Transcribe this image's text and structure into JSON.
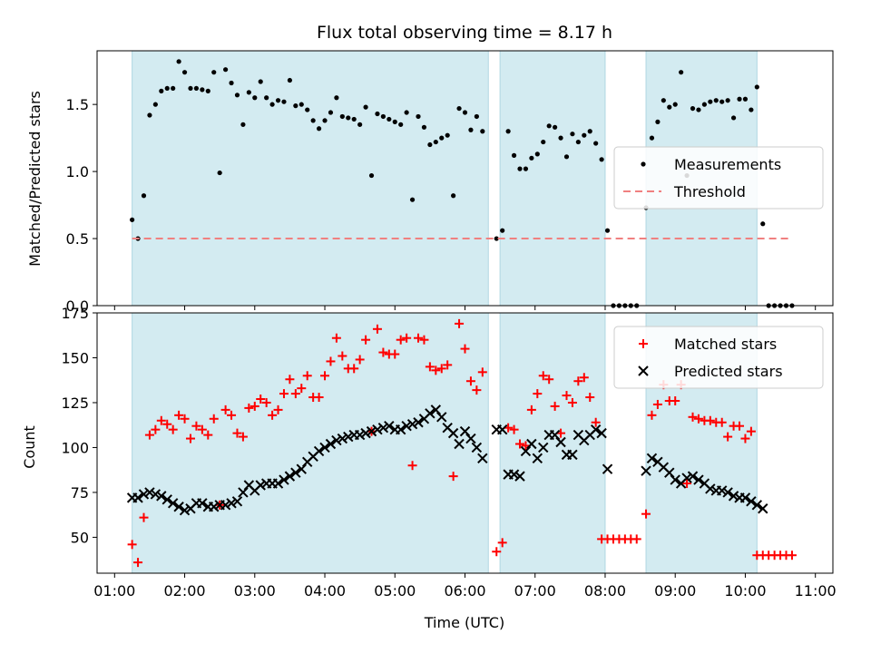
{
  "chart_data": [
    {
      "type": "scatter",
      "title": "Flux total observing time = 8.17 h",
      "ylabel": "Matched/Predicted stars",
      "xlabel": "",
      "xlim": [
        "01:00",
        "11:00"
      ],
      "ylim": [
        0,
        1.9
      ],
      "yticks": [
        "0.0",
        "0.5",
        "1.0",
        "1.5"
      ],
      "legend_position": "center-right",
      "observing_windows": [
        [
          "01:15",
          "06:20"
        ],
        [
          "06:30",
          "08:00"
        ],
        [
          "08:35",
          "10:10"
        ]
      ],
      "window_color": "#d3ebf1",
      "series": [
        {
          "name": "Measurements",
          "color": "#000000",
          "marker": "dot",
          "x": [
            "01:15",
            "01:20",
            "01:25",
            "01:30",
            "01:35",
            "01:40",
            "01:45",
            "01:50",
            "01:55",
            "02:00",
            "02:05",
            "02:10",
            "02:15",
            "02:20",
            "02:25",
            "02:30",
            "02:35",
            "02:40",
            "02:45",
            "02:50",
            "02:55",
            "03:00",
            "03:05",
            "03:10",
            "03:15",
            "03:20",
            "03:25",
            "03:30",
            "03:35",
            "03:40",
            "03:45",
            "03:50",
            "03:55",
            "04:00",
            "04:05",
            "04:10",
            "04:15",
            "04:20",
            "04:25",
            "04:30",
            "04:35",
            "04:40",
            "04:45",
            "04:50",
            "04:55",
            "05:00",
            "05:05",
            "05:10",
            "05:15",
            "05:20",
            "05:25",
            "05:30",
            "05:35",
            "05:40",
            "05:45",
            "05:50",
            "05:55",
            "06:00",
            "06:05",
            "06:10",
            "06:15",
            "06:27",
            "06:32",
            "06:37",
            "06:42",
            "06:47",
            "06:52",
            "06:57",
            "07:02",
            "07:07",
            "07:12",
            "07:17",
            "07:22",
            "07:27",
            "07:32",
            "07:37",
            "07:42",
            "07:47",
            "07:52",
            "07:57",
            "08:02",
            "08:07",
            "08:12",
            "08:17",
            "08:22",
            "08:27",
            "08:35",
            "08:40",
            "08:45",
            "08:50",
            "08:55",
            "09:00",
            "09:05",
            "09:10",
            "09:15",
            "09:20",
            "09:25",
            "09:30",
            "09:35",
            "09:40",
            "09:45",
            "09:50",
            "09:55",
            "10:00",
            "10:05",
            "10:10",
            "10:15",
            "10:20",
            "10:25",
            "10:30",
            "10:35",
            "10:40"
          ],
          "y": [
            0.64,
            0.5,
            0.82,
            1.42,
            1.5,
            1.6,
            1.62,
            1.62,
            1.82,
            1.74,
            1.62,
            1.62,
            1.61,
            1.6,
            1.74,
            0.99,
            1.76,
            1.66,
            1.57,
            1.35,
            1.59,
            1.55,
            1.67,
            1.55,
            1.5,
            1.53,
            1.52,
            1.68,
            1.49,
            1.5,
            1.46,
            1.38,
            1.32,
            1.38,
            1.44,
            1.55,
            1.41,
            1.4,
            1.39,
            1.35,
            1.48,
            0.97,
            1.43,
            1.41,
            1.39,
            1.37,
            1.35,
            1.44,
            0.79,
            1.41,
            1.33,
            1.2,
            1.22,
            1.25,
            1.27,
            0.82,
            1.47,
            1.44,
            1.31,
            1.41,
            1.3,
            0.5,
            0.56,
            1.3,
            1.12,
            1.02,
            1.02,
            1.1,
            1.13,
            1.22,
            1.34,
            1.33,
            1.25,
            1.11,
            1.28,
            1.22,
            1.27,
            1.3,
            1.21,
            1.09,
            0.56,
            0.0,
            0.0,
            0.0,
            0.0,
            0.0,
            0.73,
            1.25,
            1.37,
            1.53,
            1.48,
            1.5,
            1.74,
            0.97,
            1.47,
            1.46,
            1.5,
            1.52,
            1.53,
            1.52,
            1.53,
            1.4,
            1.54,
            1.54,
            1.46,
            1.63,
            0.61,
            0.0,
            0.0,
            0.0,
            0.0,
            0.0
          ]
        },
        {
          "name": "Threshold",
          "color": "#f08080",
          "style": "dashed",
          "x": [
            "01:15",
            "10:40"
          ],
          "y": [
            0.5,
            0.5
          ]
        }
      ]
    },
    {
      "type": "scatter",
      "title": "",
      "ylabel": "Count",
      "xlabel": "Time (UTC)",
      "xlim": [
        "01:00",
        "11:00"
      ],
      "ylim": [
        30,
        175
      ],
      "yticks": [
        "50",
        "75",
        "100",
        "125",
        "150",
        "175"
      ],
      "xticks": [
        "01:00",
        "02:00",
        "03:00",
        "04:00",
        "05:00",
        "06:00",
        "07:00",
        "08:00",
        "09:00",
        "10:00",
        "11:00"
      ],
      "legend_position": "top-right",
      "observing_windows": [
        [
          "01:15",
          "06:20"
        ],
        [
          "06:30",
          "08:00"
        ],
        [
          "08:35",
          "10:10"
        ]
      ],
      "window_color": "#d3ebf1",
      "series": [
        {
          "name": "Matched stars",
          "color": "#ff0000",
          "marker": "plus",
          "x": [
            "01:15",
            "01:20",
            "01:25",
            "01:30",
            "01:35",
            "01:40",
            "01:45",
            "01:50",
            "01:55",
            "02:00",
            "02:05",
            "02:10",
            "02:15",
            "02:20",
            "02:25",
            "02:30",
            "02:35",
            "02:40",
            "02:45",
            "02:50",
            "02:55",
            "03:00",
            "03:05",
            "03:10",
            "03:15",
            "03:20",
            "03:25",
            "03:30",
            "03:35",
            "03:40",
            "03:45",
            "03:50",
            "03:55",
            "04:00",
            "04:05",
            "04:10",
            "04:15",
            "04:20",
            "04:25",
            "04:30",
            "04:35",
            "04:40",
            "04:45",
            "04:50",
            "04:55",
            "05:00",
            "05:05",
            "05:10",
            "05:15",
            "05:20",
            "05:25",
            "05:30",
            "05:35",
            "05:40",
            "05:45",
            "05:50",
            "05:55",
            "06:00",
            "06:05",
            "06:10",
            "06:15",
            "06:27",
            "06:32",
            "06:37",
            "06:42",
            "06:47",
            "06:52",
            "06:57",
            "07:02",
            "07:07",
            "07:12",
            "07:17",
            "07:22",
            "07:27",
            "07:32",
            "07:37",
            "07:42",
            "07:47",
            "07:52",
            "07:57",
            "08:02",
            "08:07",
            "08:12",
            "08:17",
            "08:22",
            "08:27",
            "08:35",
            "08:40",
            "08:45",
            "08:50",
            "08:55",
            "09:00",
            "09:05",
            "09:10",
            "09:15",
            "09:20",
            "09:25",
            "09:30",
            "09:35",
            "09:40",
            "09:45",
            "09:50",
            "09:55",
            "10:00",
            "10:05",
            "10:10",
            "10:15",
            "10:20",
            "10:25",
            "10:30",
            "10:35",
            "10:40"
          ],
          "y": [
            46,
            36,
            61,
            107,
            110,
            115,
            113,
            110,
            118,
            116,
            105,
            112,
            110,
            107,
            116,
            68,
            121,
            118,
            108,
            106,
            122,
            123,
            127,
            125,
            118,
            121,
            130,
            138,
            130,
            133,
            140,
            128,
            128,
            140,
            148,
            161,
            151,
            144,
            144,
            149,
            160,
            109,
            166,
            153,
            152,
            152,
            160,
            161,
            90,
            161,
            160,
            145,
            143,
            144,
            146,
            84,
            169,
            155,
            137,
            132,
            142,
            42,
            47,
            111,
            110,
            102,
            101,
            121,
            130,
            140,
            138,
            123,
            108,
            129,
            125,
            137,
            139,
            128,
            114,
            49,
            49,
            49,
            49,
            49,
            49,
            49,
            63,
            118,
            124,
            135,
            126,
            126,
            135,
            80,
            117,
            116,
            115,
            115,
            114,
            114,
            106,
            112,
            112,
            105,
            109,
            40,
            40,
            40,
            40,
            40,
            40,
            40
          ],
          "x_fix": []
        },
        {
          "name": "Predicted stars",
          "color": "#000000",
          "marker": "x",
          "x": [
            "01:15",
            "01:20",
            "01:25",
            "01:30",
            "01:35",
            "01:40",
            "01:45",
            "01:50",
            "01:55",
            "02:00",
            "02:05",
            "02:10",
            "02:15",
            "02:20",
            "02:25",
            "02:30",
            "02:35",
            "02:40",
            "02:45",
            "02:50",
            "02:55",
            "03:00",
            "03:05",
            "03:10",
            "03:15",
            "03:20",
            "03:25",
            "03:30",
            "03:35",
            "03:40",
            "03:45",
            "03:50",
            "03:55",
            "04:00",
            "04:05",
            "04:10",
            "04:15",
            "04:20",
            "04:25",
            "04:30",
            "04:35",
            "04:40",
            "04:45",
            "04:50",
            "04:55",
            "05:00",
            "05:05",
            "05:10",
            "05:15",
            "05:20",
            "05:25",
            "05:30",
            "05:35",
            "05:40",
            "05:45",
            "05:50",
            "05:55",
            "06:00",
            "06:05",
            "06:10",
            "06:15",
            "06:27",
            "06:32",
            "06:37",
            "06:42",
            "06:47",
            "06:52",
            "06:57",
            "07:02",
            "07:07",
            "07:12",
            "07:17",
            "07:22",
            "07:27",
            "07:32",
            "07:37",
            "07:42",
            "07:47",
            "07:52",
            "07:57",
            "08:02",
            "08:35",
            "08:40",
            "08:45",
            "08:50",
            "08:55",
            "09:00",
            "09:05",
            "09:10",
            "09:15",
            "09:20",
            "09:25",
            "09:30",
            "09:35",
            "09:40",
            "09:45",
            "09:50",
            "09:55",
            "10:00",
            "10:05",
            "10:10",
            "10:15"
          ],
          "y": [
            72,
            72,
            74,
            75,
            74,
            73,
            71,
            69,
            67,
            65,
            66,
            69,
            69,
            67,
            67,
            68,
            68,
            69,
            70,
            75,
            79,
            76,
            79,
            80,
            80,
            80,
            82,
            84,
            86,
            88,
            92,
            95,
            98,
            100,
            102,
            104,
            105,
            106,
            107,
            107,
            108,
            109,
            110,
            111,
            112,
            110,
            110,
            112,
            113,
            114,
            116,
            119,
            121,
            117,
            111,
            108,
            102,
            109,
            105,
            100,
            94,
            110,
            110,
            85,
            85,
            84,
            98,
            102,
            94,
            100,
            107,
            107,
            103,
            96,
            96,
            107,
            104,
            107,
            110,
            108,
            88,
            87,
            94,
            92,
            89,
            86,
            82,
            80,
            83,
            84,
            82,
            80,
            77,
            76,
            76,
            75,
            73,
            72,
            72,
            70,
            68,
            66
          ],
          "x_fix": []
        }
      ]
    }
  ]
}
